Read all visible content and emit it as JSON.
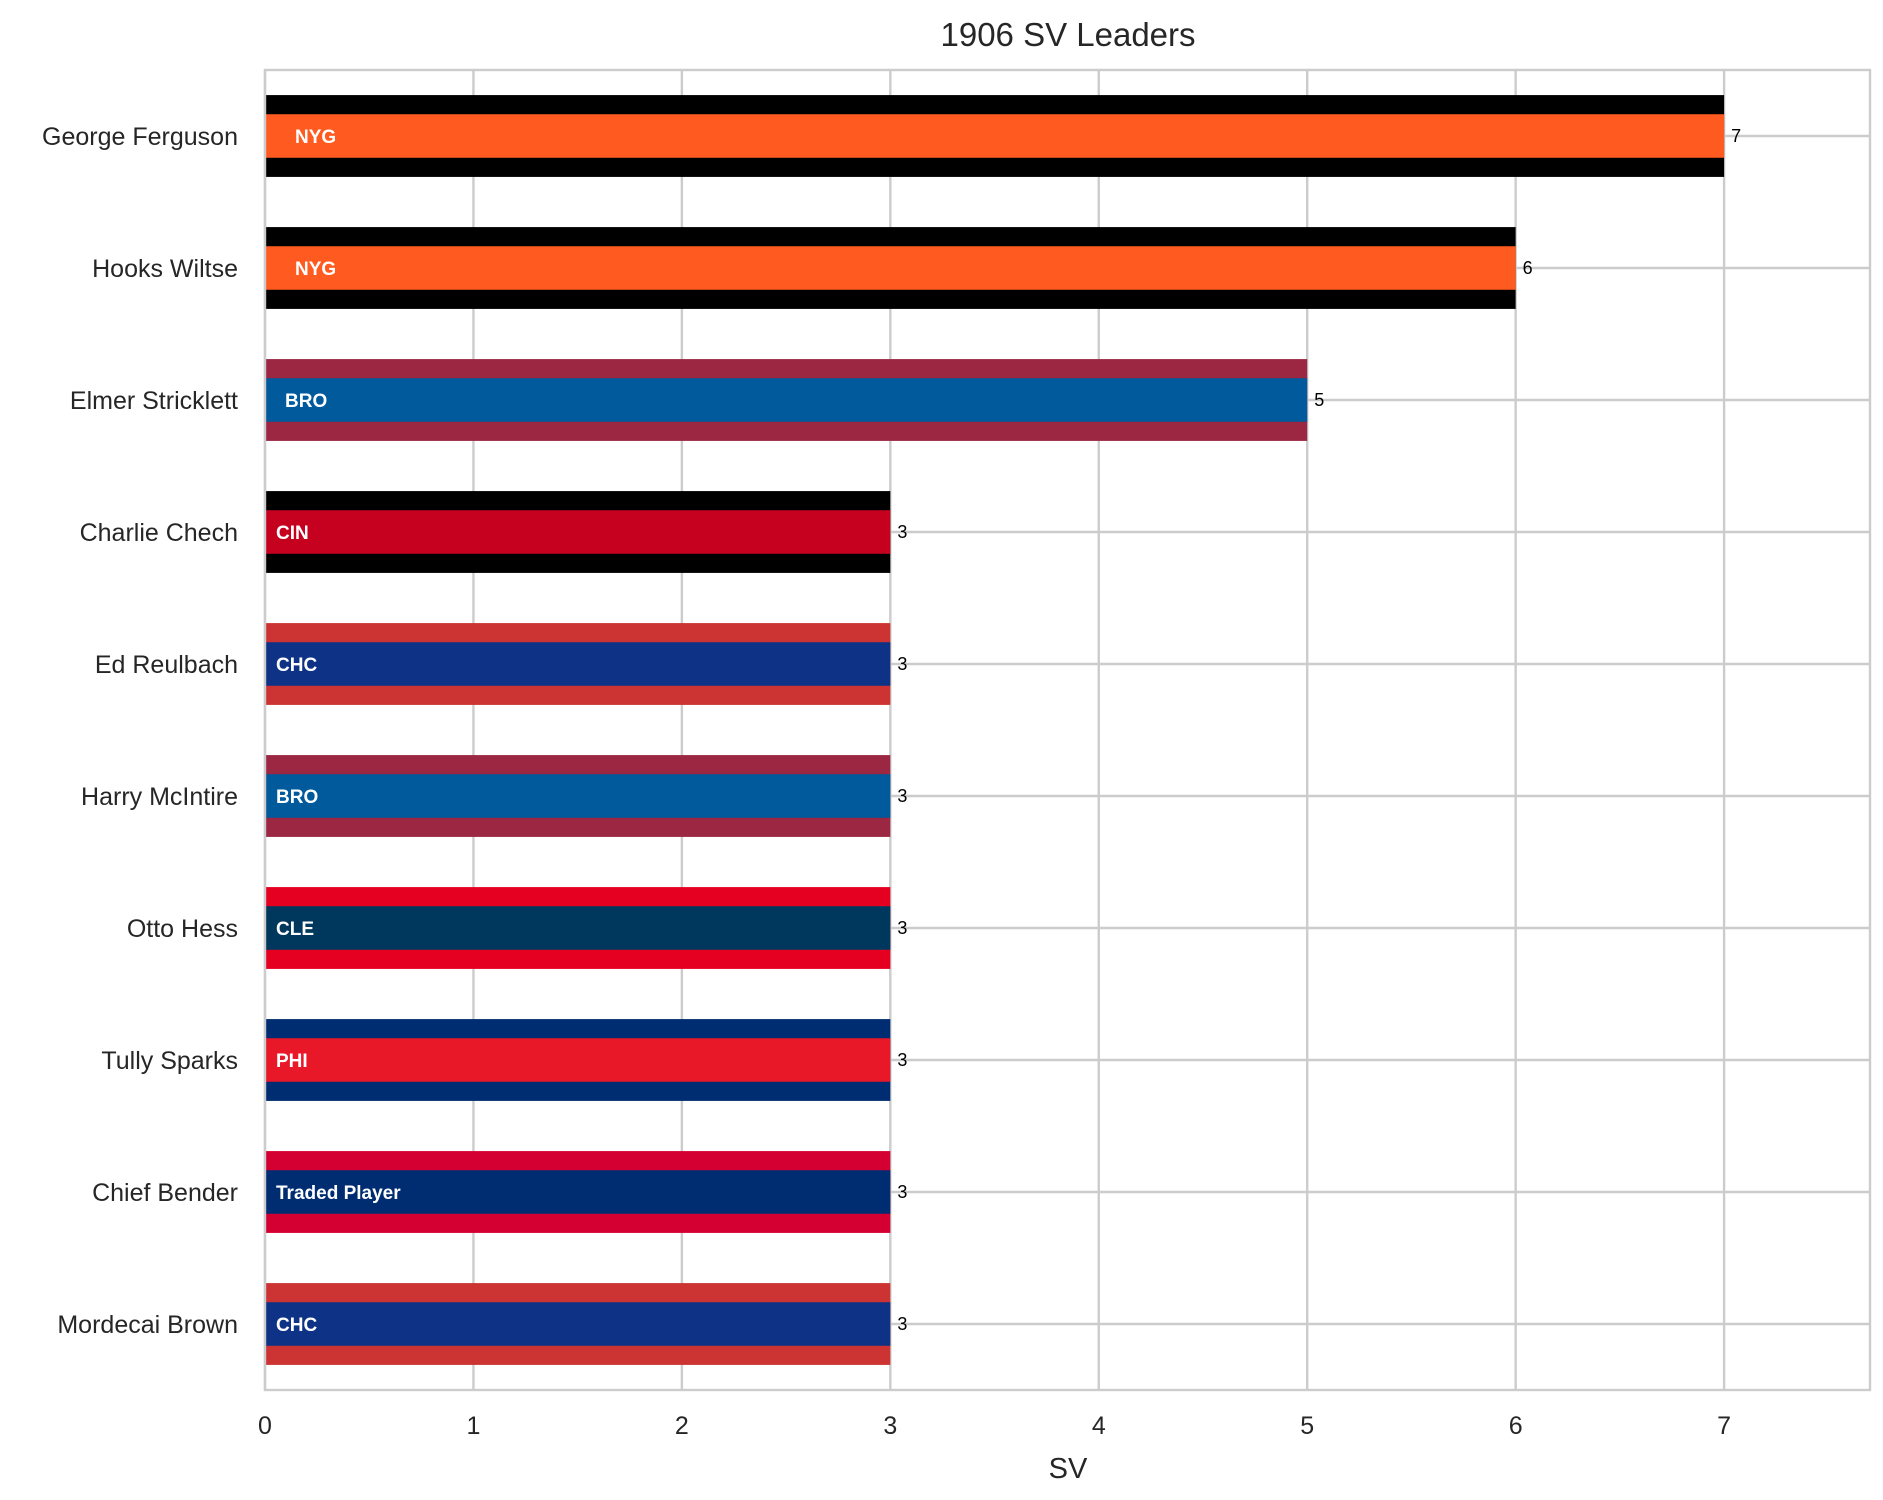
{
  "chart_data": {
    "type": "bar",
    "orientation": "horizontal",
    "title": "1906 SV Leaders",
    "xlabel": "SV",
    "ylabel": "",
    "xlim": [
      0,
      7.7
    ],
    "xticks": [
      0,
      1,
      2,
      3,
      4,
      5,
      6,
      7
    ],
    "grid": true,
    "categories": [
      "George Ferguson",
      "Hooks Wiltse",
      "Elmer Stricklett",
      "Charlie Chech",
      "Ed Reulbach",
      "Harry McIntire",
      "Otto Hess",
      "Tully Sparks",
      "Chief Bender",
      "Mordecai Brown"
    ],
    "values": [
      7,
      6,
      5,
      3,
      3,
      3,
      3,
      3,
      3,
      3
    ],
    "teams": [
      "NYG",
      "NYG",
      "BRO",
      "CIN",
      "CHC",
      "BRO",
      "CLE",
      "PHI",
      "Traded Player",
      "CHC"
    ],
    "colors": {
      "primary": [
        "#FF5A1F",
        "#FF5A1F",
        "#005A9C",
        "#C6011F",
        "#0E3386",
        "#005A9C",
        "#00385D",
        "#E81828",
        "#002D72",
        "#0E3386"
      ],
      "secondary": [
        "#000000",
        "#000000",
        "#9B2743",
        "#000000",
        "#CC3433",
        "#9B2743",
        "#E50022",
        "#002D72",
        "#D50032",
        "#CC3433"
      ]
    }
  }
}
